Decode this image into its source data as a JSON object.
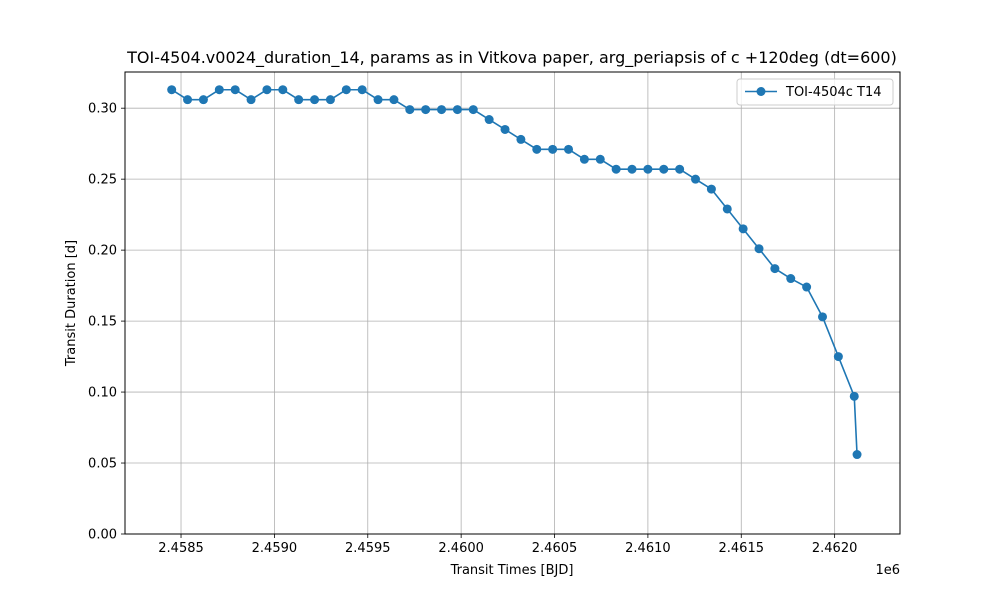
{
  "chart_data": {
    "type": "line",
    "title": "TOI-4504.v0024_duration_14, params as in Vitkova paper, arg_periapsis of c +120deg (dt=600)",
    "xlabel": "Transit Times [BJD]",
    "ylabel": "Transit Duration [d]",
    "x_offset_label": "1e6",
    "xlim": [
      2458200,
      2462350
    ],
    "ylim": [
      0.0,
      0.3255
    ],
    "xticks": [
      2458500,
      2459000,
      2459500,
      2460000,
      2460500,
      2461000,
      2461500,
      2462000
    ],
    "xtick_labels": [
      "2.4585",
      "2.4590",
      "2.4595",
      "2.4600",
      "2.4605",
      "2.4610",
      "2.4615",
      "2.4620"
    ],
    "yticks": [
      0.0,
      0.05,
      0.1,
      0.15,
      0.2,
      0.25,
      0.3
    ],
    "ytick_labels": [
      "0.00",
      "0.05",
      "0.10",
      "0.15",
      "0.20",
      "0.25",
      "0.30"
    ],
    "grid": true,
    "legend_position": "top-right",
    "series": [
      {
        "name": "TOI-4504c T14",
        "color": "#1f77b4",
        "marker": "circle",
        "x": [
          2458450,
          2458535,
          2458620,
          2458705,
          2458790,
          2458875,
          2458960,
          2459045,
          2459130,
          2459215,
          2459300,
          2459385,
          2459470,
          2459555,
          2459640,
          2459725,
          2459810,
          2459895,
          2459980,
          2460065,
          2460150,
          2460235,
          2460320,
          2460405,
          2460490,
          2460575,
          2460660,
          2460745,
          2460830,
          2460915,
          2461000,
          2461085,
          2461170,
          2461255,
          2461340,
          2461425,
          2461510,
          2461595,
          2461680,
          2461765,
          2461850,
          2461935,
          2462020,
          2462105
        ],
        "y": [
          0.313,
          0.306,
          0.306,
          0.313,
          0.313,
          0.306,
          0.313,
          0.313,
          0.306,
          0.306,
          0.306,
          0.313,
          0.313,
          0.306,
          0.306,
          0.299,
          0.299,
          0.299,
          0.299,
          0.299,
          0.292,
          0.285,
          0.278,
          0.271,
          0.271,
          0.271,
          0.264,
          0.264,
          0.257,
          0.257,
          0.257,
          0.257,
          0.257,
          0.25,
          0.243,
          0.229,
          0.215,
          0.201,
          0.187,
          0.18,
          0.174,
          0.153,
          0.125,
          0.097
        ]
      }
    ],
    "last_point": [
      2462120,
      0.056
    ]
  }
}
